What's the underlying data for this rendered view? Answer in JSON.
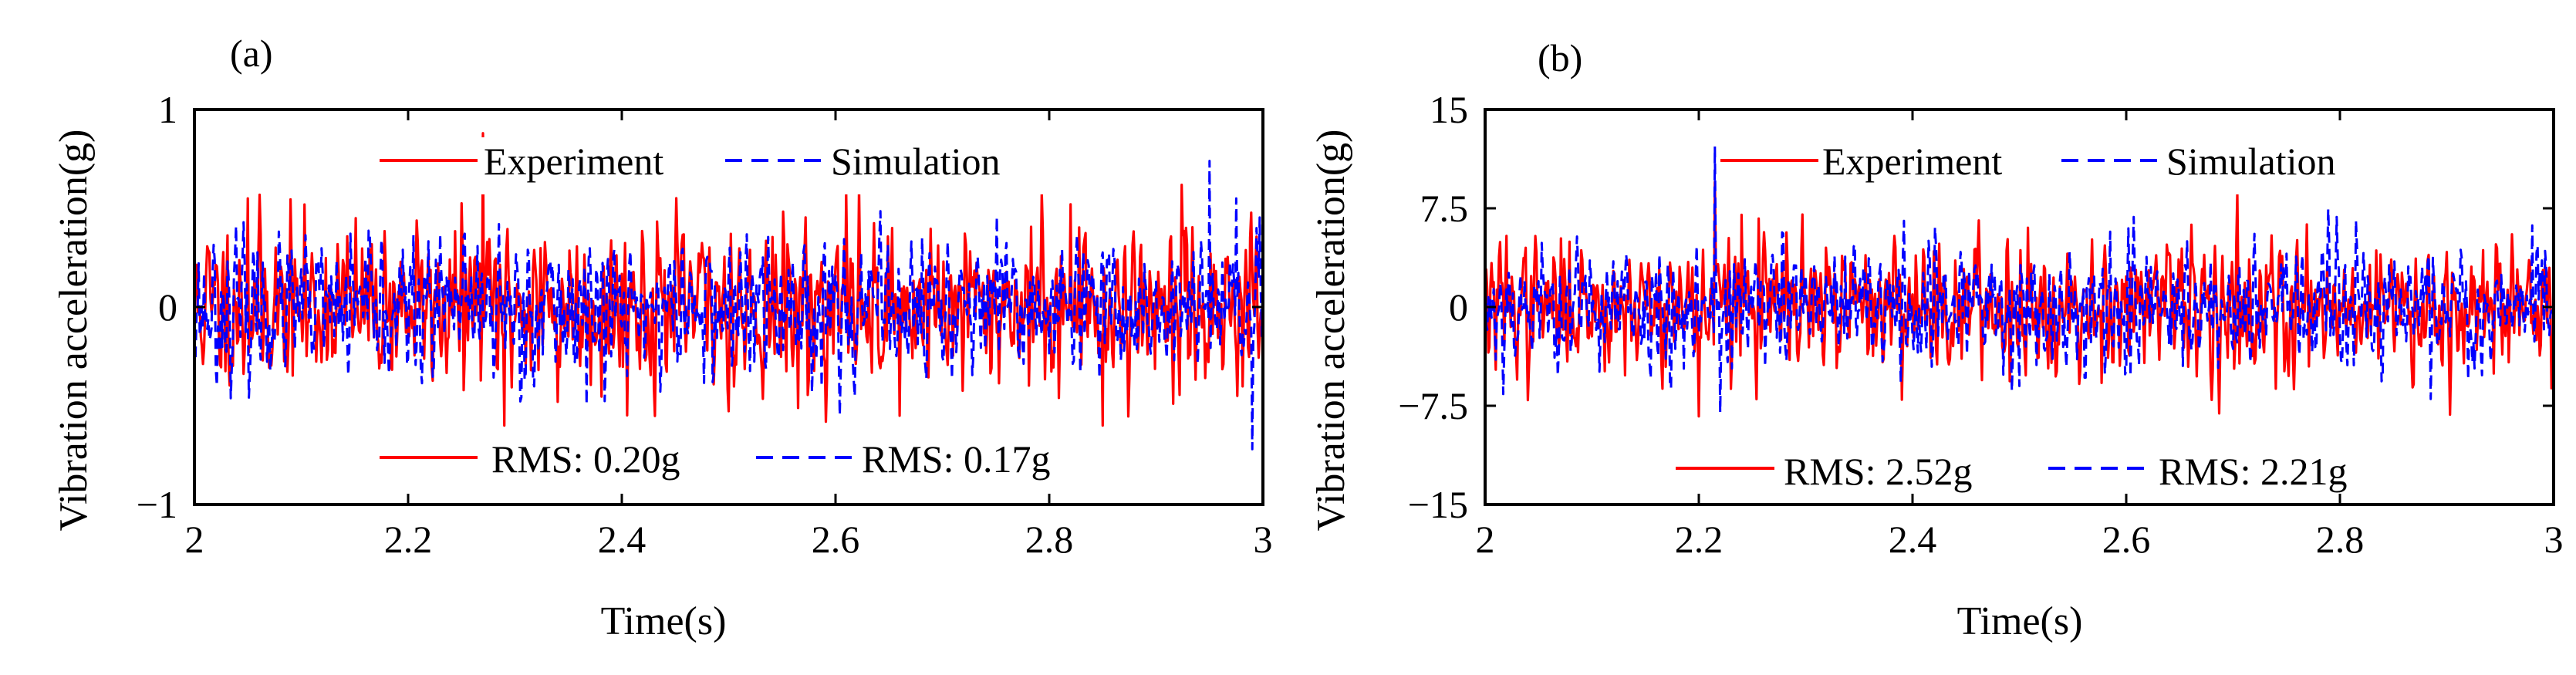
{
  "chart_data": [
    {
      "type": "line",
      "panel_label": "(a)",
      "xlabel": "Time(s)",
      "ylabel": "Vibration acceleration(g)",
      "xlim": [
        2,
        3
      ],
      "ylim": [
        -1,
        1
      ],
      "xticks": [
        2,
        2.2,
        2.4,
        2.6,
        2.8,
        3
      ],
      "xtick_labels": [
        "2",
        "2.2",
        "2.4",
        "2.6",
        "2.8",
        "3"
      ],
      "yticks": [
        -1,
        0,
        1
      ],
      "ytick_labels": [
        "−1",
        "0",
        "1"
      ],
      "legend": [
        "Experiment",
        "Simulation"
      ],
      "legend_position": "top-center",
      "rms_labels": [
        "RMS: 0.20g",
        "RMS: 0.17g"
      ],
      "rms_position": "bottom-center",
      "series": [
        {
          "name": "Experiment",
          "style": "solid",
          "color": "#ff0000",
          "rms": 0.2,
          "seed": 11,
          "spikes": [
            [
              2.27,
              0.88
            ],
            [
              2.29,
              -0.6
            ],
            [
              2.34,
              -0.48
            ],
            [
              2.66,
              -0.55
            ],
            [
              2.85,
              -0.6
            ],
            [
              2.05,
              0.55
            ],
            [
              2.61,
              0.58
            ],
            [
              2.82,
              0.52
            ]
          ]
        },
        {
          "name": "Simulation",
          "style": "dashed",
          "color": "#0000ff",
          "rms": 0.17,
          "seed": 23,
          "spikes": [
            [
              2.95,
              0.74
            ],
            [
              2.99,
              -0.72
            ],
            [
              2.975,
              0.55
            ],
            [
              2.285,
              0.42
            ]
          ]
        }
      ]
    },
    {
      "type": "line",
      "panel_label": "(b)",
      "xlabel": "Time(s)",
      "ylabel": "Vibration acceleration(g)",
      "xlim": [
        2,
        3
      ],
      "ylim": [
        -15,
        15
      ],
      "xticks": [
        2,
        2.2,
        2.4,
        2.6,
        2.8,
        3
      ],
      "xtick_labels": [
        "2",
        "2.2",
        "2.4",
        "2.6",
        "2.8",
        "3"
      ],
      "yticks": [
        -15,
        -7.5,
        0,
        7.5,
        15
      ],
      "ytick_labels": [
        "−15",
        "−7.5",
        "0",
        "7.5",
        "15"
      ],
      "legend": [
        "Experiment",
        "Simulation"
      ],
      "legend_position": "top-center",
      "rms_labels": [
        "RMS: 2.52g",
        "RMS: 2.21g"
      ],
      "rms_position": "bottom-center",
      "series": [
        {
          "name": "Experiment",
          "style": "solid",
          "color": "#ff0000",
          "rms": 2.52,
          "seed": 37,
          "spikes": [
            [
              2.2,
              -8.3
            ],
            [
              2.215,
              9.5
            ],
            [
              2.74,
              -6.2
            ],
            [
              2.24,
              7.0
            ]
          ]
        },
        {
          "name": "Simulation",
          "style": "dashed",
          "color": "#0000ff",
          "rms": 2.21,
          "seed": 53,
          "spikes": [
            [
              2.215,
              12.2
            ],
            [
              2.22,
              -8.0
            ],
            [
              2.5,
              -6.0
            ],
            [
              2.92,
              -5.5
            ],
            [
              2.98,
              6.2
            ]
          ]
        }
      ]
    }
  ]
}
